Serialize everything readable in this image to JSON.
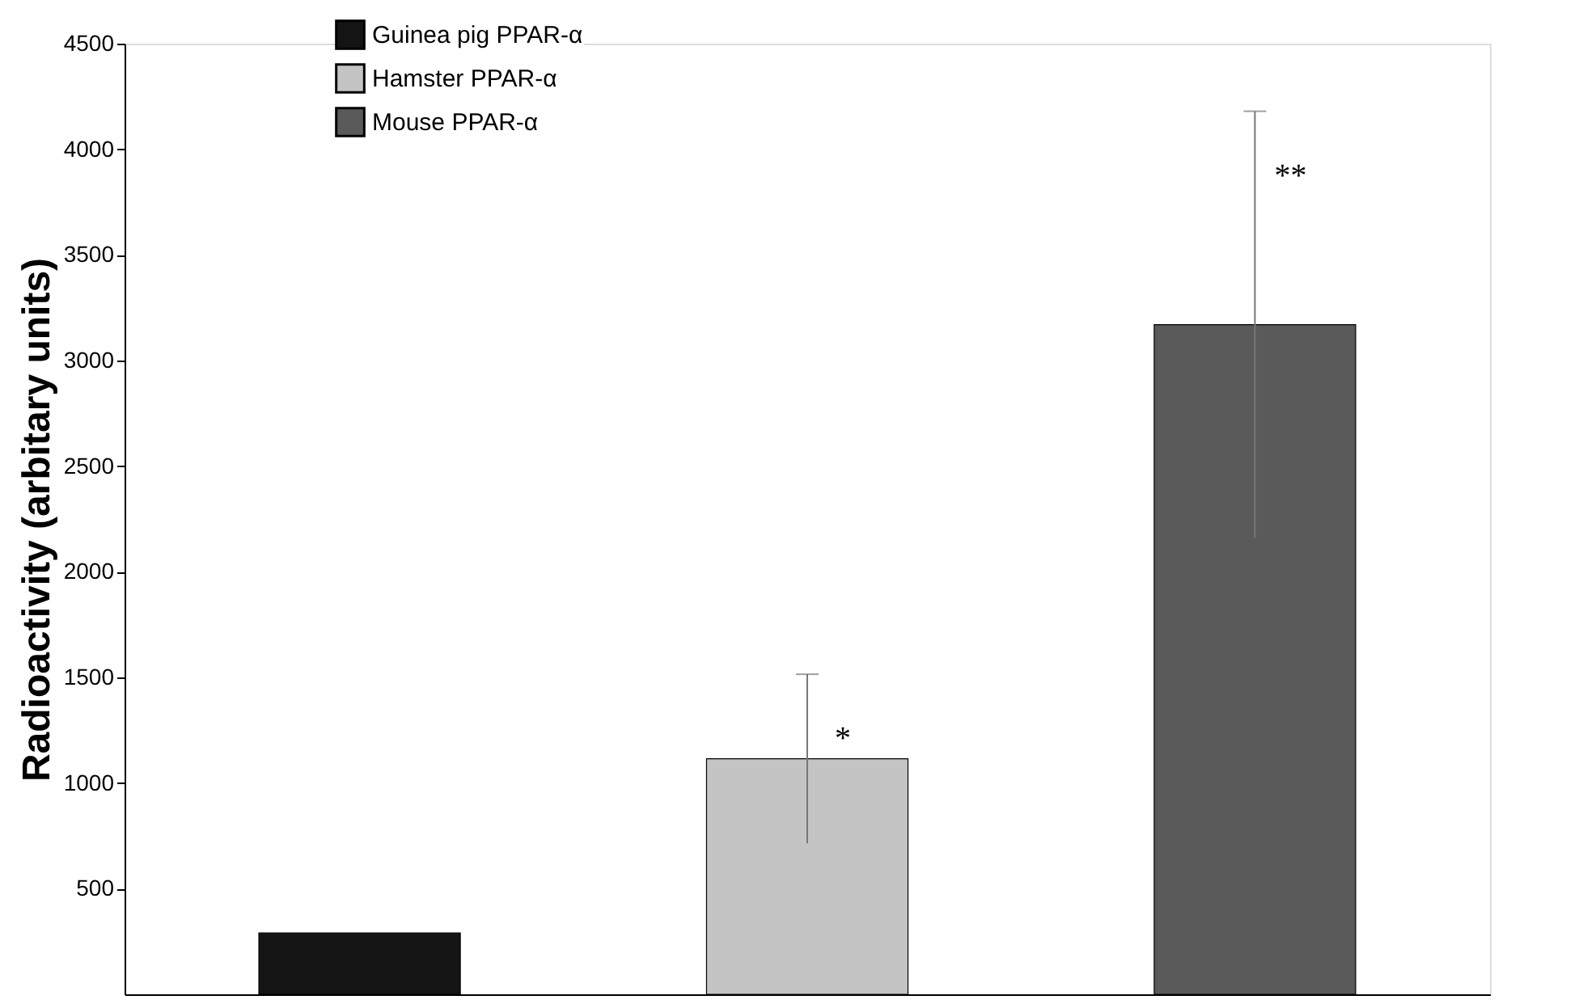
{
  "chart_data": {
    "type": "bar",
    "ylabel": "Radioactivity (arbitary units)",
    "categories": [
      null,
      null,
      null
    ],
    "series": [
      {
        "name": "Guinea pig PPAR-α",
        "color": "#141414",
        "values": [
          290,
          null,
          null
        ],
        "errors": [
          null,
          null,
          null
        ]
      },
      {
        "name": "Hamster PPAR-α",
        "color": "#c4c4c4",
        "values": [
          null,
          1115,
          null
        ],
        "errors": [
          null,
          400,
          null
        ]
      },
      {
        "name": "Mouse PPAR-α",
        "color": "#5a5a5a",
        "values": [
          null,
          null,
          3170
        ],
        "errors": [
          null,
          null,
          1010
        ]
      }
    ],
    "ylim": [
      0,
      4500
    ],
    "yticks": [
      500,
      1000,
      1500,
      2000,
      2500,
      3000,
      3500,
      4000,
      4500
    ],
    "annotations": [
      "*",
      "**"
    ],
    "tick_labels": "y",
    "grid": false,
    "legend": "top left"
  }
}
